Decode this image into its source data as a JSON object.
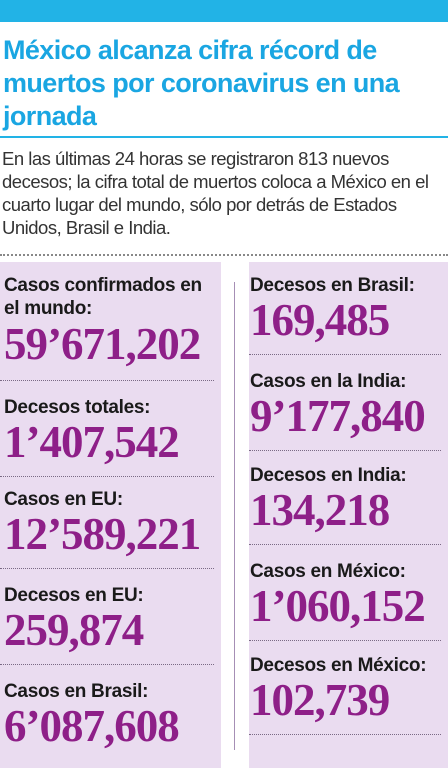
{
  "headline": "México alcanza cifra récord de muertos por coronavirus en una jornada",
  "lede": "En las últimas 24 horas se registraron 813 nuevos decesos; la cifra total de muertos coloca a México en el cuarto lugar del mundo, sólo por detrás de Estados Unidos, Brasil e India.",
  "colors": {
    "accent_blue": "#22b3e6",
    "panel_lilac": "#eadcf0",
    "figure_purple": "#8e1f88"
  },
  "left_column": [
    {
      "label": "Casos confirmados en el mundo:",
      "value": "59’671,202"
    },
    {
      "label": "Decesos totales:",
      "value": "1’407,542"
    },
    {
      "label": "Casos en EU:",
      "value": "12’589,221"
    },
    {
      "label": "Decesos en EU:",
      "value": "259,874"
    },
    {
      "label": "Casos en Brasil:",
      "value": "6’087,608"
    }
  ],
  "right_column": [
    {
      "label": "Decesos en Brasil:",
      "value": "169,485"
    },
    {
      "label": "Casos en la India:",
      "value": "9’177,840"
    },
    {
      "label": "Decesos en India:",
      "value": "134,218"
    },
    {
      "label": "Casos en México:",
      "value": "1’060,152"
    },
    {
      "label": "Decesos en México:",
      "value": "102,739"
    }
  ]
}
